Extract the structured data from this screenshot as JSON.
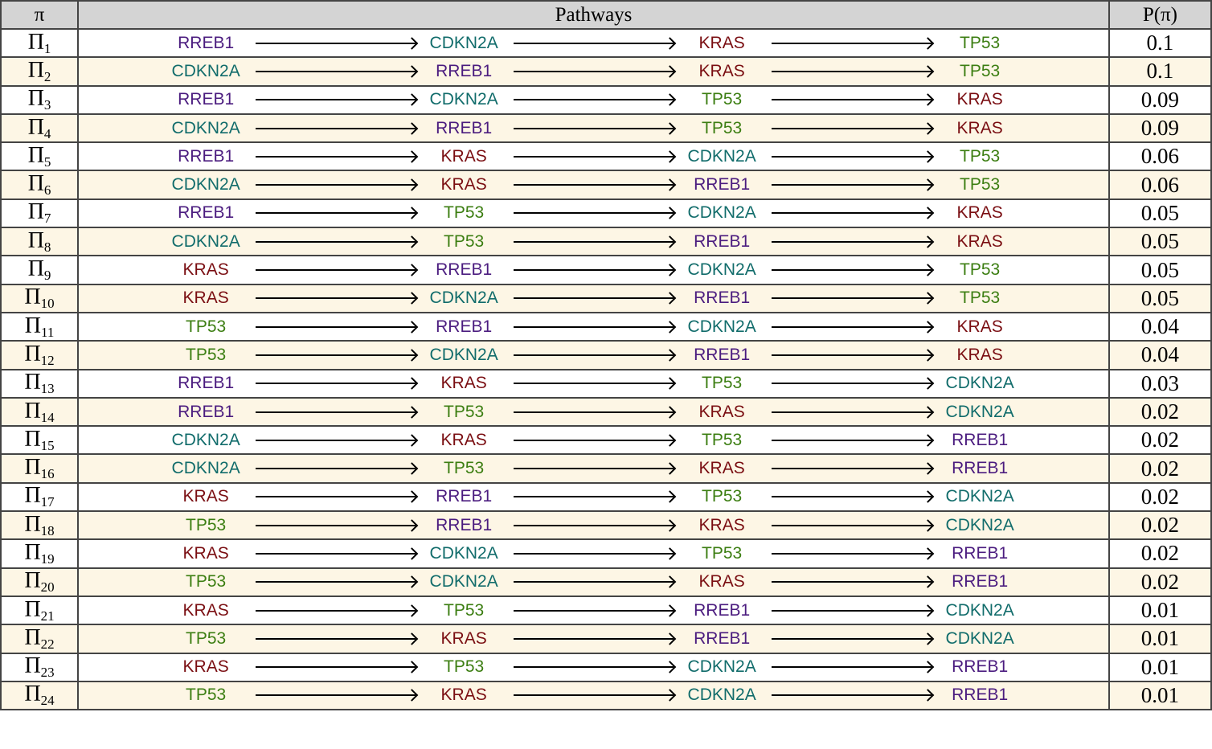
{
  "header": {
    "pi": "π",
    "pathways": "Pathways",
    "prob": "P(π)"
  },
  "gene_colors": {
    "RREB1": "#4b1c7f",
    "CDKN2A": "#116c6b",
    "KRAS": "#7a0e12",
    "TP53": "#3c7e12"
  },
  "rows": [
    {
      "sym": "Π",
      "sub": "1",
      "genes": [
        "RREB1",
        "CDKN2A",
        "KRAS",
        "TP53"
      ],
      "prob": "0.1"
    },
    {
      "sym": "Π",
      "sub": "2",
      "genes": [
        "CDKN2A",
        "RREB1",
        "KRAS",
        "TP53"
      ],
      "prob": "0.1"
    },
    {
      "sym": "Π",
      "sub": "3",
      "genes": [
        "RREB1",
        "CDKN2A",
        "TP53",
        "KRAS"
      ],
      "prob": "0.09"
    },
    {
      "sym": "Π",
      "sub": "4",
      "genes": [
        "CDKN2A",
        "RREB1",
        "TP53",
        "KRAS"
      ],
      "prob": "0.09"
    },
    {
      "sym": "Π",
      "sub": "5",
      "genes": [
        "RREB1",
        "KRAS",
        "CDKN2A",
        "TP53"
      ],
      "prob": "0.06"
    },
    {
      "sym": "Π",
      "sub": "6",
      "genes": [
        "CDKN2A",
        "KRAS",
        "RREB1",
        "TP53"
      ],
      "prob": "0.06"
    },
    {
      "sym": "Π",
      "sub": "7",
      "genes": [
        "RREB1",
        "TP53",
        "CDKN2A",
        "KRAS"
      ],
      "prob": "0.05"
    },
    {
      "sym": "Π",
      "sub": "8",
      "genes": [
        "CDKN2A",
        "TP53",
        "RREB1",
        "KRAS"
      ],
      "prob": "0.05"
    },
    {
      "sym": "Π",
      "sub": "9",
      "genes": [
        "KRAS",
        "RREB1",
        "CDKN2A",
        "TP53"
      ],
      "prob": "0.05"
    },
    {
      "sym": "Π",
      "sub": "10",
      "genes": [
        "KRAS",
        "CDKN2A",
        "RREB1",
        "TP53"
      ],
      "prob": "0.05"
    },
    {
      "sym": "Π",
      "sub": "11",
      "genes": [
        "TP53",
        "RREB1",
        "CDKN2A",
        "KRAS"
      ],
      "prob": "0.04"
    },
    {
      "sym": "Π",
      "sub": "12",
      "genes": [
        "TP53",
        "CDKN2A",
        "RREB1",
        "KRAS"
      ],
      "prob": "0.04"
    },
    {
      "sym": "Π",
      "sub": "13",
      "genes": [
        "RREB1",
        "KRAS",
        "TP53",
        "CDKN2A"
      ],
      "prob": "0.03"
    },
    {
      "sym": "Π",
      "sub": "14",
      "genes": [
        "RREB1",
        "TP53",
        "KRAS",
        "CDKN2A"
      ],
      "prob": "0.02"
    },
    {
      "sym": "Π",
      "sub": "15",
      "genes": [
        "CDKN2A",
        "KRAS",
        "TP53",
        "RREB1"
      ],
      "prob": "0.02"
    },
    {
      "sym": "Π",
      "sub": "16",
      "genes": [
        "CDKN2A",
        "TP53",
        "KRAS",
        "RREB1"
      ],
      "prob": "0.02"
    },
    {
      "sym": "Π",
      "sub": "17",
      "genes": [
        "KRAS",
        "RREB1",
        "TP53",
        "CDKN2A"
      ],
      "prob": "0.02"
    },
    {
      "sym": "Π",
      "sub": "18",
      "genes": [
        "TP53",
        "RREB1",
        "KRAS",
        "CDKN2A"
      ],
      "prob": "0.02"
    },
    {
      "sym": "Π",
      "sub": "19",
      "genes": [
        "KRAS",
        "CDKN2A",
        "TP53",
        "RREB1"
      ],
      "prob": "0.02"
    },
    {
      "sym": "Π",
      "sub": "20",
      "genes": [
        "TP53",
        "CDKN2A",
        "KRAS",
        "RREB1"
      ],
      "prob": "0.02"
    },
    {
      "sym": "Π",
      "sub": "21",
      "genes": [
        "KRAS",
        "TP53",
        "RREB1",
        "CDKN2A"
      ],
      "prob": "0.01"
    },
    {
      "sym": "Π",
      "sub": "22",
      "genes": [
        "TP53",
        "KRAS",
        "RREB1",
        "CDKN2A"
      ],
      "prob": "0.01"
    },
    {
      "sym": "Π",
      "sub": "23",
      "genes": [
        "KRAS",
        "TP53",
        "CDKN2A",
        "RREB1"
      ],
      "prob": "0.01"
    },
    {
      "sym": "Π",
      "sub": "24",
      "genes": [
        "TP53",
        "KRAS",
        "CDKN2A",
        "RREB1"
      ],
      "prob": "0.01"
    }
  ]
}
